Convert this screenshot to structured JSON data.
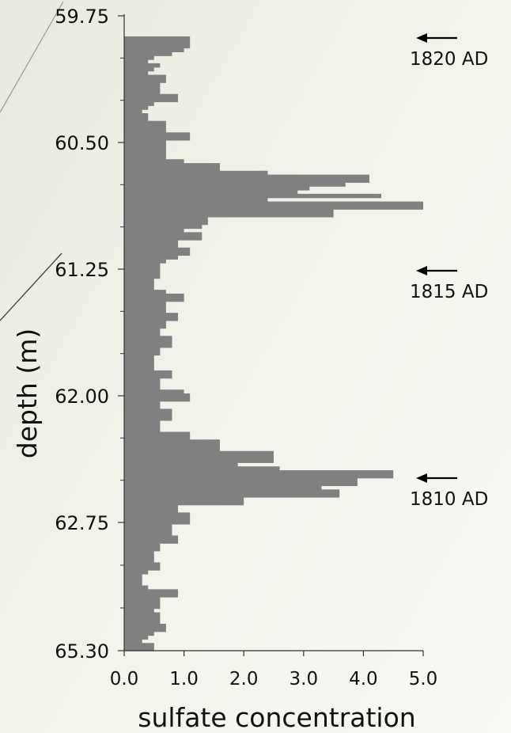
{
  "chart_data": {
    "type": "bar",
    "orientation": "horizontal",
    "title": "",
    "xlabel": "sulfate concentration",
    "ylabel": "depth (m)",
    "xlim": [
      0,
      5
    ],
    "x_ticks": [
      "0.0",
      "1.0",
      "2.0",
      "3.0",
      "4.0",
      "5.0"
    ],
    "y_ticks": [
      "59.75",
      "60.50",
      "61.25",
      "62.00",
      "62.75",
      "65.30"
    ],
    "grid": false,
    "bar_color": "#808080",
    "annotations": [
      {
        "label": "1820 AD"
      },
      {
        "label": "1815 AD"
      },
      {
        "label": "1810 AD"
      }
    ],
    "series": [
      {
        "values": [
          1.1,
          1.1,
          1.1,
          1.0,
          0.8,
          0.5,
          0.4,
          0.6,
          0.5,
          0.4,
          0.7,
          0.7,
          0.6,
          0.6,
          0.6,
          0.9,
          0.9,
          0.5,
          0.4,
          0.3,
          0.4,
          0.4,
          0.7,
          0.7,
          0.7,
          1.1,
          1.1,
          0.7,
          0.7,
          0.7,
          0.7,
          0.7,
          1.0,
          1.6,
          1.6,
          2.4,
          4.1,
          4.1,
          3.7,
          3.1,
          2.9,
          4.3,
          2.4,
          5.0,
          5.0,
          3.5,
          3.5,
          1.4,
          1.4,
          1.3,
          1.0,
          1.3,
          1.3,
          0.9,
          0.9,
          1.1,
          1.1,
          0.9,
          0.7,
          0.6,
          0.6,
          0.6,
          0.6,
          0.5,
          0.5,
          0.5,
          0.7,
          1.0,
          1.0,
          0.7,
          0.7,
          0.7,
          0.9,
          0.9,
          0.7,
          0.7,
          0.6,
          0.6,
          0.8,
          0.8,
          0.8,
          0.6,
          0.6,
          0.5,
          0.5,
          0.5,
          0.5,
          0.8,
          0.8,
          0.6,
          0.6,
          0.6,
          1.0,
          1.1,
          1.1,
          0.6,
          0.6,
          0.8,
          0.8,
          0.8,
          0.6,
          0.6,
          0.6,
          1.1,
          1.1,
          1.6,
          1.6,
          1.6,
          2.5,
          2.5,
          2.5,
          1.9,
          2.6,
          4.5,
          4.5,
          3.9,
          3.9,
          3.3,
          3.6,
          3.6,
          2.0,
          2.0,
          0.9,
          0.9,
          1.1,
          1.1,
          1.1,
          0.8,
          0.8,
          0.8,
          0.9,
          0.9,
          0.6,
          0.6,
          0.5,
          0.5,
          0.5,
          0.6,
          0.6,
          0.4,
          0.3,
          0.3,
          0.3,
          0.4,
          0.9,
          0.9,
          0.6,
          0.6,
          0.6,
          0.5,
          0.6,
          0.6,
          0.6,
          0.7,
          0.7,
          0.5,
          0.4,
          0.3,
          0.5,
          0.5
        ]
      }
    ]
  }
}
